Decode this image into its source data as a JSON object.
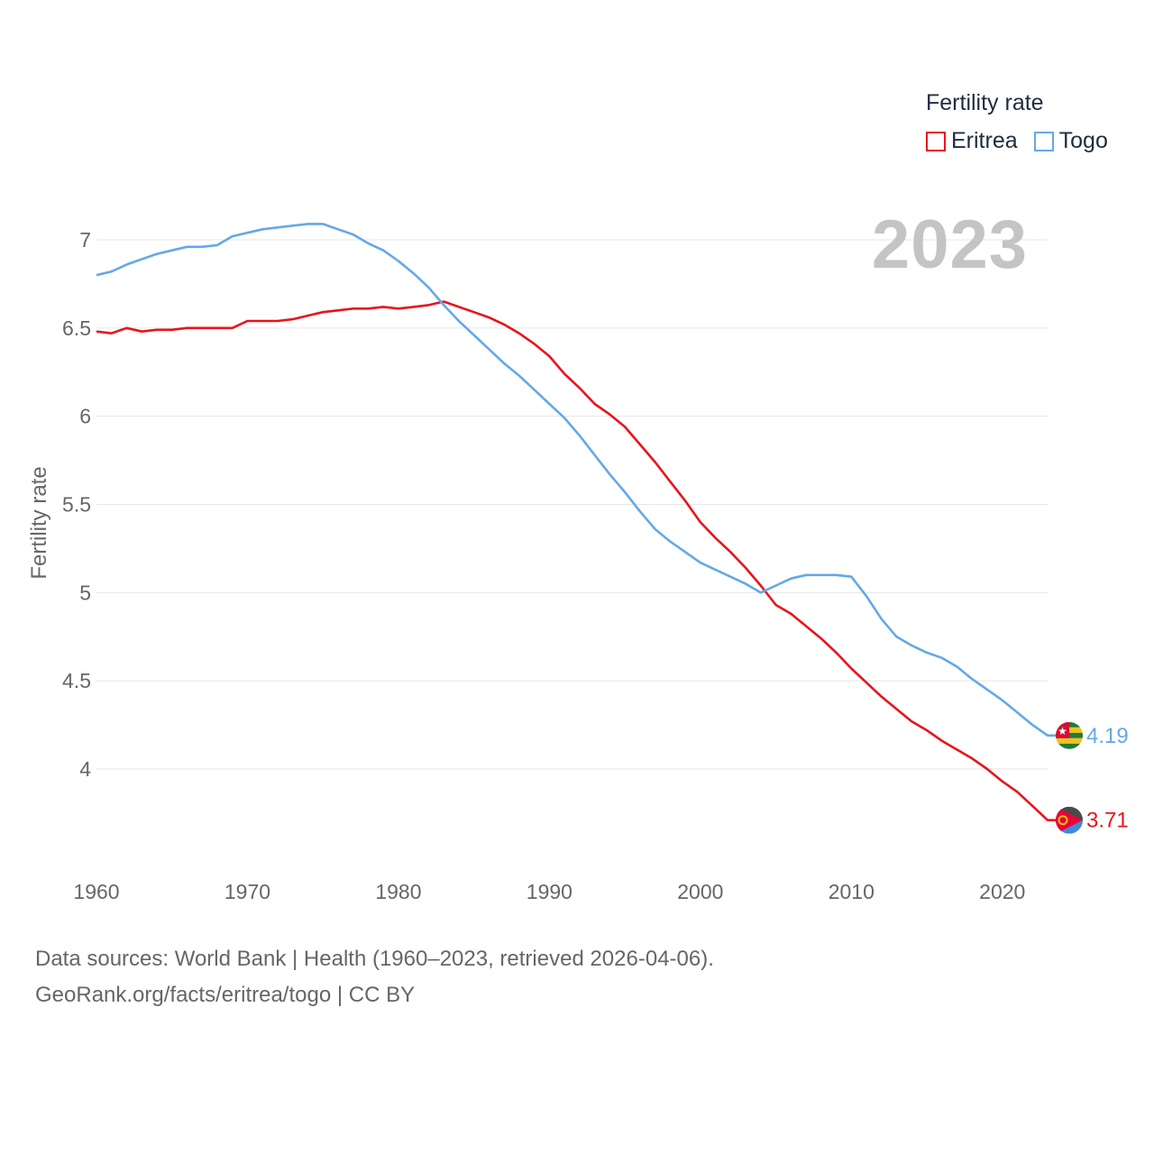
{
  "legend": {
    "title": "Fertility rate",
    "items": [
      {
        "label": "Eritrea",
        "color": "#e8141b"
      },
      {
        "label": "Togo",
        "color": "#64a8e8"
      }
    ]
  },
  "year_label": "2023",
  "source": {
    "line1": "Data sources: World Bank | Health (1960–2023, retrieved 2026-04-06).",
    "line2": "GeoRank.org/facts/eritrea/togo | CC BY"
  },
  "flags": {
    "eritrea": "eritrea-flag-icon",
    "togo": "togo-flag-icon"
  },
  "chart_data": {
    "type": "line",
    "title": "",
    "xlabel": "",
    "ylabel": "Fertility rate",
    "xlim": [
      1960,
      2023
    ],
    "ylim": [
      3.5,
      7.25
    ],
    "xticks": [
      1960,
      1970,
      1980,
      1990,
      2000,
      2010,
      2020
    ],
    "yticks": [
      4,
      4.5,
      5,
      5.5,
      6,
      6.5,
      7
    ],
    "x": [
      1960,
      1961,
      1962,
      1963,
      1964,
      1965,
      1966,
      1967,
      1968,
      1969,
      1970,
      1971,
      1972,
      1973,
      1974,
      1975,
      1976,
      1977,
      1978,
      1979,
      1980,
      1981,
      1982,
      1983,
      1984,
      1985,
      1986,
      1987,
      1988,
      1989,
      1990,
      1991,
      1992,
      1993,
      1994,
      1995,
      1996,
      1997,
      1998,
      1999,
      2000,
      2001,
      2002,
      2003,
      2004,
      2005,
      2006,
      2007,
      2008,
      2009,
      2010,
      2011,
      2012,
      2013,
      2014,
      2015,
      2016,
      2017,
      2018,
      2019,
      2020,
      2021,
      2022,
      2023
    ],
    "series": [
      {
        "name": "Eritrea",
        "color": "#e8141b",
        "end_label": "3.71",
        "values": [
          6.48,
          6.47,
          6.5,
          6.48,
          6.49,
          6.49,
          6.5,
          6.5,
          6.5,
          6.5,
          6.54,
          6.54,
          6.54,
          6.55,
          6.57,
          6.59,
          6.6,
          6.61,
          6.61,
          6.62,
          6.61,
          6.62,
          6.63,
          6.65,
          6.62,
          6.59,
          6.56,
          6.52,
          6.47,
          6.41,
          6.34,
          6.24,
          6.16,
          6.07,
          6.01,
          5.94,
          5.84,
          5.74,
          5.63,
          5.52,
          5.4,
          5.31,
          5.23,
          5.14,
          5.04,
          4.93,
          4.88,
          4.81,
          4.74,
          4.66,
          4.57,
          4.49,
          4.41,
          4.34,
          4.27,
          4.22,
          4.16,
          4.11,
          4.06,
          4.0,
          3.93,
          3.87,
          3.79,
          3.71
        ]
      },
      {
        "name": "Togo",
        "color": "#64a8e8",
        "end_label": "4.19",
        "values": [
          6.8,
          6.82,
          6.86,
          6.89,
          6.92,
          6.94,
          6.96,
          6.96,
          6.97,
          7.02,
          7.04,
          7.06,
          7.07,
          7.08,
          7.09,
          7.09,
          7.06,
          7.03,
          6.98,
          6.94,
          6.88,
          6.81,
          6.73,
          6.63,
          6.54,
          6.46,
          6.38,
          6.3,
          6.23,
          6.15,
          6.07,
          5.99,
          5.89,
          5.78,
          5.67,
          5.57,
          5.46,
          5.36,
          5.29,
          5.23,
          5.17,
          5.13,
          5.09,
          5.05,
          5.0,
          5.04,
          5.08,
          5.1,
          5.1,
          5.1,
          5.09,
          4.98,
          4.85,
          4.75,
          4.7,
          4.66,
          4.63,
          4.58,
          4.51,
          4.45,
          4.39,
          4.32,
          4.25,
          4.19
        ]
      }
    ]
  }
}
